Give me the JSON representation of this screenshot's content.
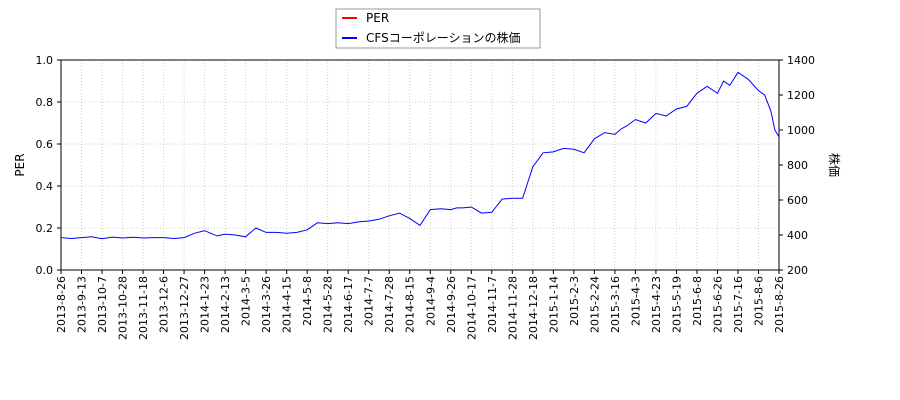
{
  "chart_data": {
    "type": "line",
    "legend": {
      "placement": "top-center",
      "entries": [
        {
          "name": "PER",
          "color": "#ff0000"
        },
        {
          "name": "CFSコーポレーションの株価",
          "color": "#0000ff"
        }
      ]
    },
    "left_axis": {
      "label": "PER",
      "range": [
        0,
        1.0
      ],
      "ticks": [
        "0.0",
        "0.2",
        "0.4",
        "0.6",
        "0.8",
        "1.0"
      ]
    },
    "right_axis": {
      "label": "株価",
      "range": [
        200,
        1400
      ],
      "ticks": [
        "200",
        "400",
        "600",
        "800",
        "1000",
        "1200",
        "1400"
      ]
    },
    "grid": true,
    "x_tick_labels": [
      "2013-8-26",
      "2013-9-13",
      "2013-10-7",
      "2013-10-28",
      "2013-11-18",
      "2013-12-6",
      "2013-12-27",
      "2014-1-23",
      "2014-2-13",
      "2014-3-5",
      "2014-3-26",
      "2014-4-15",
      "2014-5-8",
      "2014-5-28",
      "2014-6-17",
      "2014-7-7",
      "2014-7-28",
      "2014-8-15",
      "2014-9-4",
      "2014-9-26",
      "2014-10-17",
      "2014-11-7",
      "2014-11-28",
      "2014-12-18",
      "2015-1-14",
      "2015-2-3",
      "2015-2-24",
      "2015-3-16",
      "2015-4-3",
      "2015-4-23",
      "2015-5-19",
      "2015-6-8",
      "2015-6-26",
      "2015-7-16",
      "2015-8-6",
      "2015-8-26"
    ],
    "series": [
      {
        "name": "PER",
        "axis": "left",
        "values": []
      },
      {
        "name": "CFSコーポレーションの株価",
        "axis": "right",
        "x": [
          0,
          0.5,
          1,
          1.5,
          2,
          2.5,
          3,
          3.5,
          4,
          4.5,
          5,
          5.5,
          6,
          6.5,
          7,
          7.3,
          7.6,
          8,
          8.5,
          9,
          9.5,
          10,
          10.5,
          11,
          11.5,
          12,
          12.5,
          13,
          13.5,
          14,
          14.5,
          15,
          15.5,
          16,
          16.5,
          17,
          17.5,
          18,
          18.5,
          19,
          19.3,
          19.6,
          20,
          20.5,
          21,
          21.5,
          22,
          22.5,
          23,
          23.5,
          24,
          24.5,
          25,
          25.5,
          26,
          26.5,
          27,
          27.3,
          27.6,
          28,
          28.5,
          29,
          29.5,
          30,
          30.5,
          31,
          31.5,
          32,
          32.3,
          32.6,
          33,
          33.5,
          34,
          34.3,
          34.6,
          34.8,
          35
        ],
        "values": [
          385,
          380,
          385,
          390,
          378,
          388,
          383,
          387,
          383,
          385,
          385,
          380,
          385,
          410,
          425,
          410,
          395,
          405,
          400,
          390,
          440,
          415,
          415,
          410,
          415,
          430,
          470,
          465,
          470,
          465,
          475,
          480,
          490,
          510,
          525,
          495,
          455,
          545,
          550,
          545,
          555,
          555,
          560,
          525,
          530,
          605,
          610,
          610,
          790,
          870,
          875,
          895,
          890,
          870,
          950,
          985,
          975,
          1005,
          1025,
          1060,
          1040,
          1095,
          1080,
          1120,
          1135,
          1210,
          1250,
          1210,
          1280,
          1255,
          1330,
          1290,
          1225,
          1200,
          1110,
          1000,
          960
        ]
      }
    ]
  }
}
